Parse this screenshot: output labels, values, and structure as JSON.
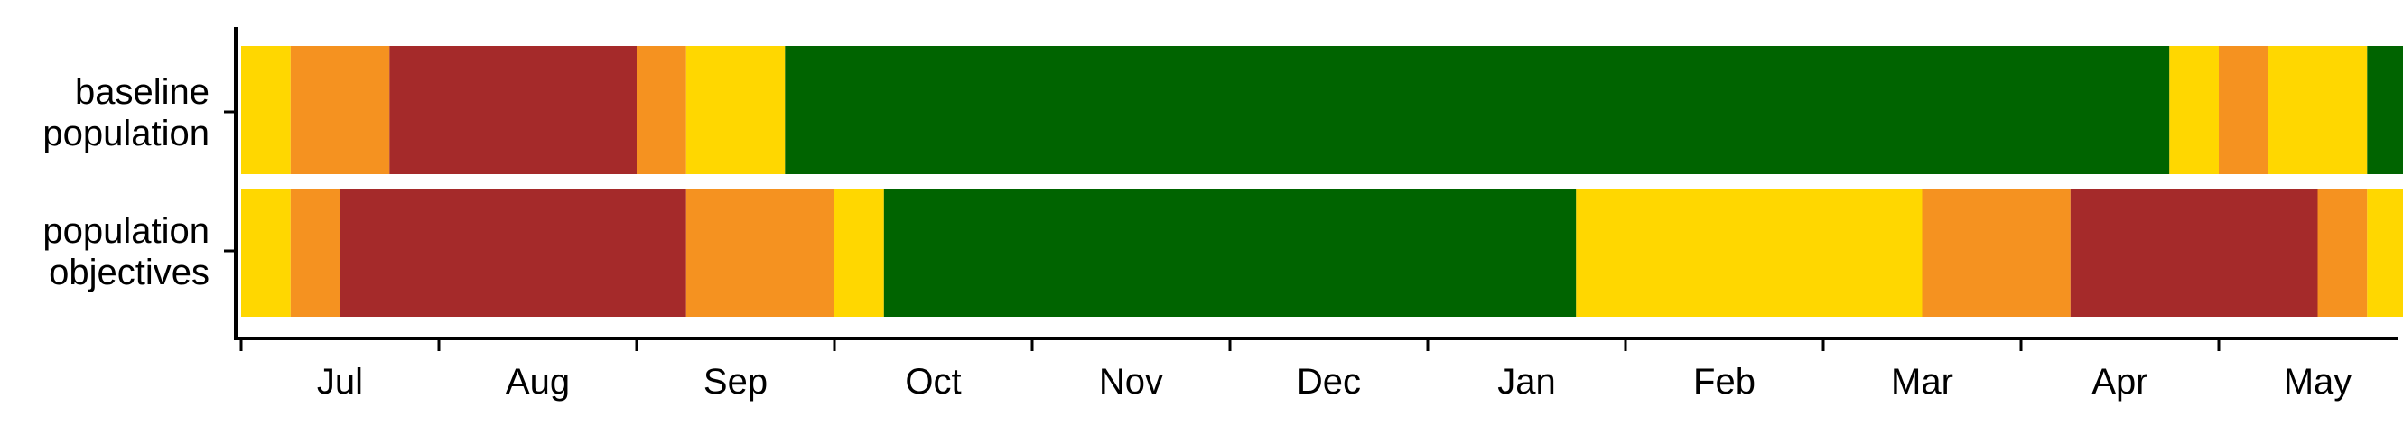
{
  "chart_data": {
    "type": "bar",
    "orientation": "horizontal-stacked-timeline",
    "categories": [
      {
        "lines": [
          "baseline",
          "population"
        ]
      },
      {
        "lines": [
          "population",
          "objectives"
        ]
      }
    ],
    "x_ticks": [
      "Jul",
      "Aug",
      "Sep",
      "Oct",
      "Nov",
      "Dec",
      "Jan",
      "Feb",
      "Mar",
      "Apr",
      "May"
    ],
    "xlim": [
      0,
      10.8
    ],
    "colors": {
      "yellow": "#FFD700",
      "orange": "#F59220",
      "red": "#A52A2A",
      "green": "#006400"
    },
    "series": [
      {
        "segments": [
          {
            "start": 0.0,
            "end": 0.25,
            "color": "yellow"
          },
          {
            "start": 0.25,
            "end": 0.75,
            "color": "orange"
          },
          {
            "start": 0.75,
            "end": 2.0,
            "color": "red"
          },
          {
            "start": 2.0,
            "end": 2.25,
            "color": "orange"
          },
          {
            "start": 2.25,
            "end": 2.75,
            "color": "yellow"
          },
          {
            "start": 2.75,
            "end": 9.75,
            "color": "green"
          },
          {
            "start": 9.75,
            "end": 10.0,
            "color": "yellow"
          },
          {
            "start": 10.0,
            "end": 10.25,
            "color": "orange"
          },
          {
            "start": 10.25,
            "end": 10.75,
            "color": "yellow"
          },
          {
            "start": 10.75,
            "end": 11.4,
            "color": "green"
          }
        ]
      },
      {
        "segments": [
          {
            "start": 0.0,
            "end": 0.25,
            "color": "yellow"
          },
          {
            "start": 0.25,
            "end": 0.5,
            "color": "orange"
          },
          {
            "start": 0.5,
            "end": 2.25,
            "color": "red"
          },
          {
            "start": 2.25,
            "end": 3.0,
            "color": "orange"
          },
          {
            "start": 3.0,
            "end": 3.25,
            "color": "yellow"
          },
          {
            "start": 3.25,
            "end": 6.75,
            "color": "green"
          },
          {
            "start": 6.75,
            "end": 8.5,
            "color": "yellow"
          },
          {
            "start": 8.5,
            "end": 9.25,
            "color": "orange"
          },
          {
            "start": 9.25,
            "end": 10.5,
            "color": "red"
          },
          {
            "start": 10.5,
            "end": 10.75,
            "color": "orange"
          },
          {
            "start": 10.75,
            "end": 11.0,
            "color": "yellow"
          },
          {
            "start": 11.0,
            "end": 11.4,
            "color": "green"
          }
        ]
      }
    ],
    "grid": false,
    "legend": "none"
  }
}
